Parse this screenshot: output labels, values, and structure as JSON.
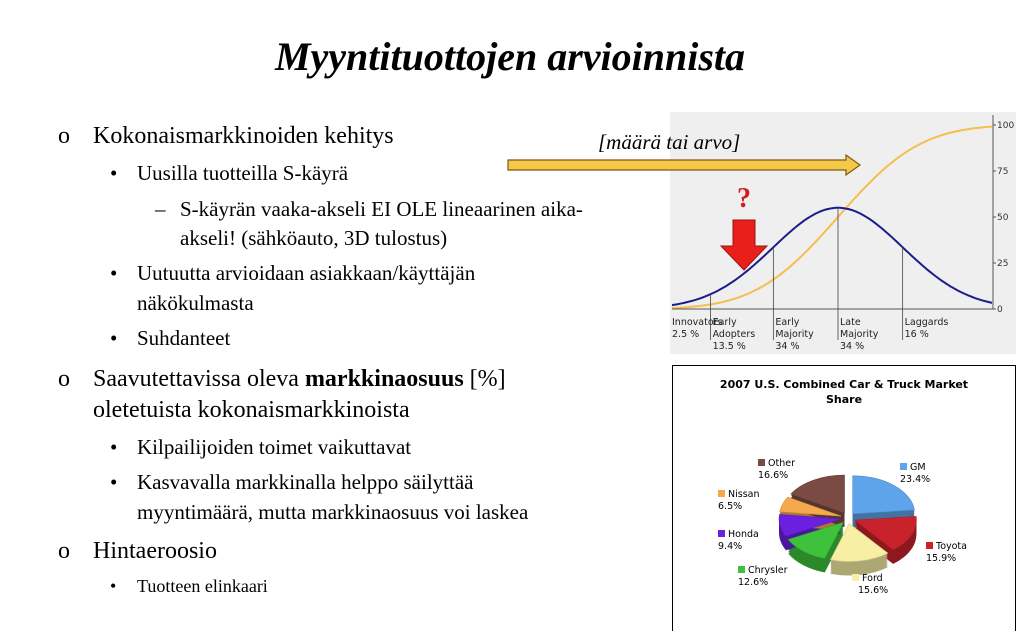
{
  "title": "Myyntituottojen arvioinnista",
  "bullets": [
    {
      "level": 0,
      "lines": [
        "Kokonaismarkkinoiden kehitys"
      ]
    },
    {
      "level": 1,
      "lines": [
        "Uusilla tuotteilla S-käyrä"
      ]
    },
    {
      "level": 2,
      "lines": [
        "S-käyrän vaaka-akseli EI OLE lineaarinen aika-",
        "akseli! (sähköauto, 3D tulostus)"
      ]
    },
    {
      "level": 1,
      "lines": [
        "Uutuutta arvioidaan asiakkaan/käyttäjän",
        "näkökulmasta"
      ]
    },
    {
      "level": 1,
      "lines": [
        "Suhdanteet"
      ]
    },
    {
      "level": 0,
      "lines": [
        [
          {
            "text": "Saavutettavissa oleva "
          },
          {
            "text": "markkinaosuus",
            "bold": true
          },
          {
            "text": " [%]"
          }
        ],
        "oletetuista kokonaismarkkinoista"
      ]
    },
    {
      "level": 1,
      "lines": [
        "Kilpailijoiden toimet vaikuttavat"
      ]
    },
    {
      "level": 1,
      "lines": [
        "Kasvavalla markkinalla helppo säilyttää",
        "myyntimäärä, mutta markkinaosuus voi laskea"
      ]
    },
    {
      "level": 0,
      "lines": [
        "Hintaeroosio"
      ]
    },
    {
      "level": 3,
      "lines": [
        "Tuotteen elinkaari"
      ]
    }
  ],
  "annotation": "[määrä tai arvo]",
  "question": "?",
  "adoption_curve": {
    "ylim": [
      0,
      100
    ],
    "yticks": [
      0,
      25,
      50,
      75,
      100
    ],
    "bell_color": "#1c1c8a",
    "s_color": "#f6bd4f",
    "segments": [
      {
        "label_lines": [
          "Innovators"
        ],
        "share": 2.5,
        "share_label": "2.5 %"
      },
      {
        "label_lines": [
          "Early",
          "Adopters"
        ],
        "share": 13.5,
        "share_label": "13.5 %"
      },
      {
        "label_lines": [
          "Early",
          "Majority"
        ],
        "share": 34,
        "share_label": "34 %"
      },
      {
        "label_lines": [
          "Late",
          "Majority"
        ],
        "share": 34,
        "share_label": "34 %"
      },
      {
        "label_lines": [
          "Laggards"
        ],
        "share": 16,
        "share_label": "16 %"
      }
    ]
  },
  "chart_data": {
    "type": "pie",
    "title_lines": [
      "2007 U.S. Combined Car & Truck Market",
      "Share"
    ],
    "categories": [
      "GM",
      "Toyota",
      "Ford",
      "Chrysler",
      "Honda",
      "Nissan",
      "Other"
    ],
    "values": [
      23.4,
      15.9,
      15.6,
      12.6,
      9.4,
      6.5,
      16.6
    ],
    "value_labels": [
      "23.4%",
      "15.9%",
      "15.6%",
      "12.6%",
      "9.4%",
      "6.5%",
      "16.6%"
    ],
    "colors": [
      "#5ea4ea",
      "#c8232c",
      "#f7f0a4",
      "#3fc23b",
      "#6b20e0",
      "#f6a84c",
      "#7b4b43"
    ]
  }
}
